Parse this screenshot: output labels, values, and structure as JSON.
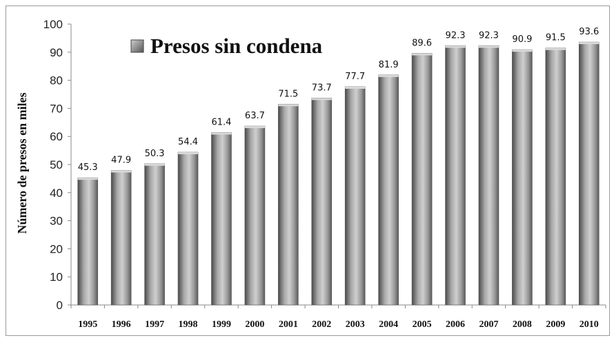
{
  "chart_data": {
    "type": "bar",
    "categories": [
      "1995",
      "1996",
      "1997",
      "1998",
      "1999",
      "2000",
      "2001",
      "2002",
      "2003",
      "2004",
      "2005",
      "2006",
      "2007",
      "2008",
      "2009",
      "2010"
    ],
    "series": [
      {
        "name": "Presos sin condena",
        "values": [
          45.3,
          47.9,
          50.3,
          54.4,
          61.4,
          63.7,
          71.5,
          73.7,
          77.7,
          81.9,
          89.6,
          92.3,
          92.3,
          90.9,
          91.5,
          93.6
        ]
      }
    ],
    "data_labels": [
      "45.3",
      "47.9",
      "50.3",
      "54.4",
      "61.4",
      "63.7",
      "71.5",
      "73.7",
      "77.7",
      "81.9",
      "89.6",
      "92.3",
      "92.3",
      "90.9",
      "91.5",
      "93.6"
    ],
    "ylabel": "Número de presos en miles",
    "xlabel": "",
    "ylim": [
      0,
      100
    ],
    "yticks": [
      "0",
      "10",
      "20",
      "30",
      "40",
      "50",
      "60",
      "70",
      "80",
      "90",
      "100"
    ],
    "legend": {
      "label": "Presos sin condena",
      "position": "top-left"
    },
    "grid": false,
    "colors": {
      "bar_dark": "#4a4a4a",
      "bar_mid": "#a8a8a8",
      "bar_light": "#cfcfcf",
      "axis": "#888888"
    }
  }
}
